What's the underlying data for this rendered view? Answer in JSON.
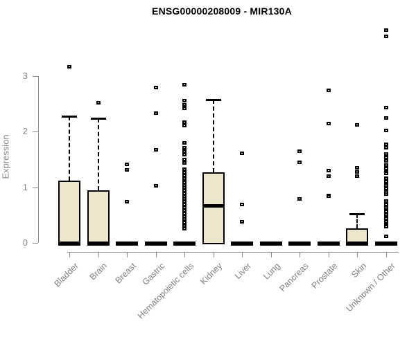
{
  "chart_data": {
    "type": "boxplot",
    "title": "ENSG00000208009 - MIR130A",
    "ylabel": "Expression",
    "xlabel": "",
    "ylim": [
      0,
      3
    ],
    "yticks": [
      0,
      1,
      2,
      3
    ],
    "grid": false,
    "legend": "none",
    "colors": {
      "box_fill": "#ede6cd",
      "box_border": "#000000",
      "median": "#000000",
      "axis": "#8a8a8a",
      "tick_label": "#7f7f7f",
      "title": "#000000"
    },
    "categories": [
      {
        "label": "Bladder",
        "q1": 0,
        "median": 0,
        "q3": 1.12,
        "whisker_low": 0,
        "whisker_high": 2.27,
        "outliers": [
          3.17
        ]
      },
      {
        "label": "Brain",
        "q1": 0,
        "median": 0,
        "q3": 0.95,
        "whisker_low": 0,
        "whisker_high": 2.24,
        "outliers": [
          2.52
        ]
      },
      {
        "label": "Breast",
        "q1": 0,
        "median": 0,
        "q3": 0,
        "whisker_low": 0,
        "whisker_high": 0,
        "outliers": [
          1.42,
          1.32,
          0.75
        ]
      },
      {
        "label": "Gastric",
        "q1": 0,
        "median": 0,
        "q3": 0,
        "whisker_low": 0,
        "whisker_high": 0,
        "outliers": [
          2.8,
          2.34,
          1.68,
          1.03
        ]
      },
      {
        "label": "Hematopoietic cells",
        "q1": 0,
        "median": 0,
        "q3": 0,
        "whisker_low": 0,
        "whisker_high": 0,
        "outliers": [
          2.84,
          2.56,
          2.49,
          2.42,
          2.17,
          2.11,
          1.8,
          1.71,
          1.65,
          1.59,
          1.5,
          1.44,
          1.33,
          1.27,
          1.22,
          1.16,
          1.09,
          1.04,
          0.99,
          0.94,
          0.89,
          0.84,
          0.79,
          0.74,
          0.69,
          0.64,
          0.58,
          0.53,
          0.48,
          0.43,
          0.37,
          0.31,
          0.26
        ]
      },
      {
        "label": "Kidney",
        "q1": 0.02,
        "median": 0.67,
        "q3": 1.27,
        "whisker_low": 0.02,
        "whisker_high": 2.57,
        "outliers": []
      },
      {
        "label": "Liver",
        "q1": 0,
        "median": 0,
        "q3": 0,
        "whisker_low": 0,
        "whisker_high": 0,
        "outliers": [
          1.61,
          0.69,
          0.39
        ]
      },
      {
        "label": "Lung",
        "q1": 0,
        "median": 0,
        "q3": 0,
        "whisker_low": 0,
        "whisker_high": 0,
        "outliers": []
      },
      {
        "label": "Pancreas",
        "q1": 0,
        "median": 0,
        "q3": 0,
        "whisker_low": 0,
        "whisker_high": 0,
        "outliers": [
          1.65,
          1.45,
          0.79
        ]
      },
      {
        "label": "Prostate",
        "q1": 0,
        "median": 0,
        "q3": 0,
        "whisker_low": 0,
        "whisker_high": 0,
        "outliers": [
          2.75,
          2.15,
          1.3,
          1.21,
          0.86,
          0.84
        ]
      },
      {
        "label": "Skin",
        "q1": 0,
        "median": 0,
        "q3": 0.26,
        "whisker_low": 0,
        "whisker_high": 0.52,
        "outliers": [
          2.12,
          1.36,
          1.28,
          1.21
        ]
      },
      {
        "label": "Unknown / Other",
        "q1": 0,
        "median": 0,
        "q3": 0,
        "whisker_low": 0,
        "whisker_high": 0,
        "outliers": [
          3.83,
          3.71,
          2.43,
          2.25,
          2.03,
          1.78,
          1.71,
          1.6,
          1.54,
          1.48,
          1.4,
          1.34,
          1.28,
          1.25,
          1.17,
          1.11,
          1.04,
          0.98,
          0.92,
          0.88,
          0.76,
          0.7,
          0.63,
          0.57,
          0.51,
          0.45,
          0.39,
          0.32,
          0.3,
          0.12
        ]
      }
    ]
  }
}
